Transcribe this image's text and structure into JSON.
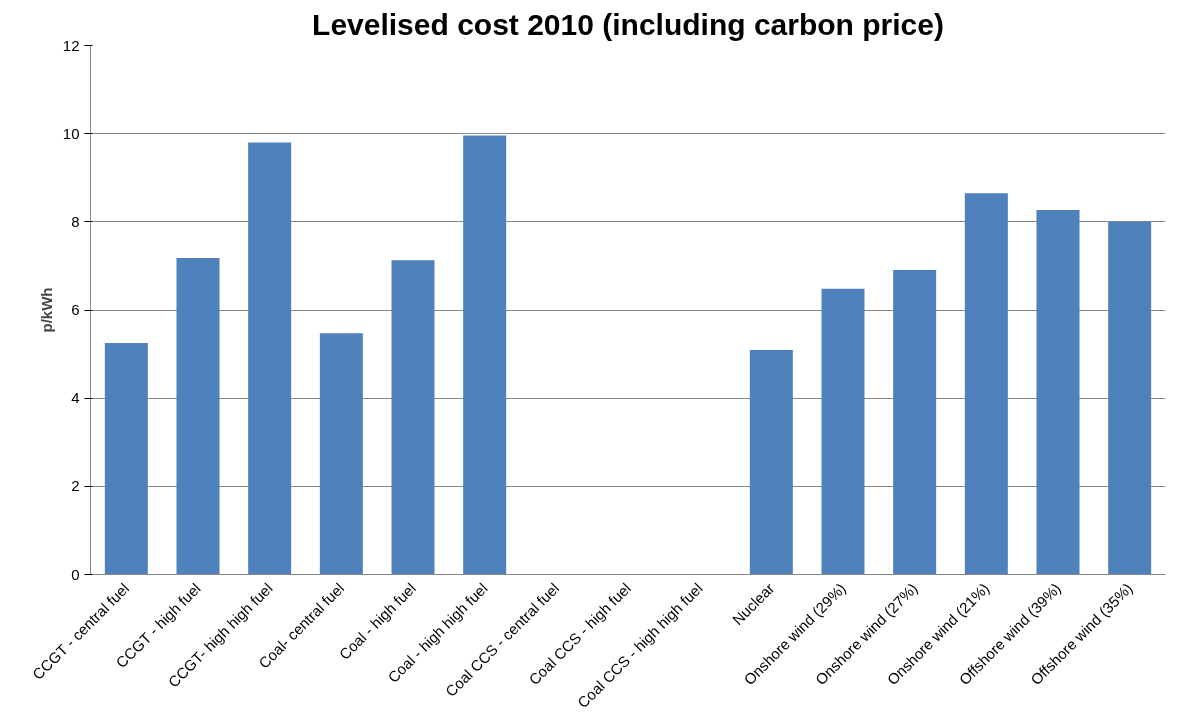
{
  "chart_data": {
    "type": "bar",
    "title": "Levelised cost 2010 (including carbon price)",
    "ylabel": "p/kWh",
    "categories": [
      "CCGT - central fuel",
      "CCGT - high fuel",
      "CCGT- high high fuel",
      "Coal- central fuel",
      "Coal - high fuel",
      "Coal - high high fuel",
      "Coal CCS - central fuel",
      "Coal CCS - high fuel",
      "Coal CCS - high high fuel",
      "Nuclear",
      "Onshore wind (29%)",
      "Onshore wind (27%)",
      "Onshore wind (21%)",
      "Offshore wind (39%)",
      "Offshore wind (35%)"
    ],
    "values": [
      5.25,
      7.18,
      9.8,
      5.47,
      7.13,
      9.96,
      null,
      null,
      null,
      5.09,
      6.48,
      6.91,
      8.65,
      8.27,
      8.0
    ],
    "color": "#4f81bd",
    "ylim": [
      0,
      12
    ],
    "yticks": [
      0,
      2,
      4,
      6,
      8,
      10,
      12
    ],
    "grid": "y"
  }
}
